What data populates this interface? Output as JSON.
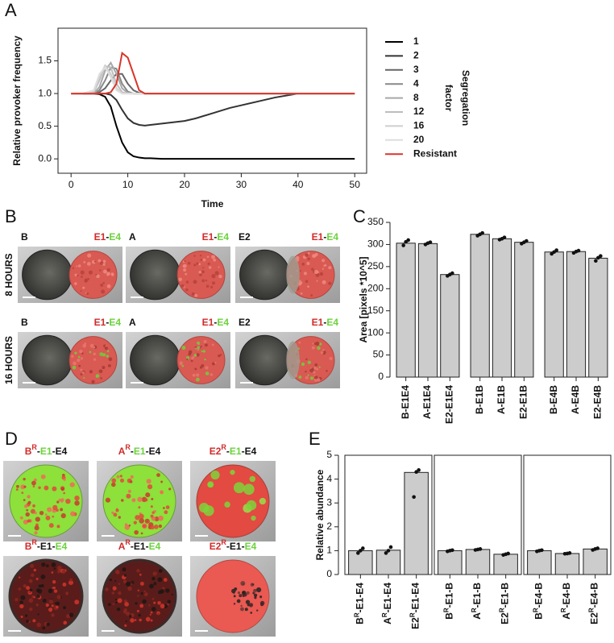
{
  "panel_labels": [
    "A",
    "B",
    "C",
    "D",
    "E"
  ],
  "chart_data": [
    {
      "type": "line",
      "xlabel": "Time",
      "ylabel": "Relative provoker frequency",
      "x": [
        0,
        2,
        4,
        5,
        6,
        7,
        8,
        9,
        10,
        11,
        12,
        13,
        14,
        16,
        18,
        20,
        22,
        25,
        28,
        30,
        33,
        36,
        40,
        45,
        50
      ],
      "xlim": [
        -2.3,
        52.1
      ],
      "xticks": [
        0,
        10,
        20,
        30,
        40,
        50
      ],
      "ylim": [
        -0.22,
        2.0
      ],
      "yticks": [
        {
          "value": 0,
          "label": "0.0"
        },
        0.5,
        {
          "value": 1,
          "label": "1.0"
        },
        1.5
      ],
      "legend": "right",
      "legend_title": [
        "Segregation",
        "factor"
      ],
      "series": [
        {
          "name": "1",
          "color": "#000000",
          "values": [
            1,
            1,
            1,
            0.99,
            0.95,
            0.8,
            0.5,
            0.25,
            0.1,
            0.04,
            0.02,
            0.01,
            0.01,
            0,
            0,
            0,
            0,
            0,
            0,
            0,
            0,
            0,
            0,
            0,
            0
          ]
        },
        {
          "name": "2",
          "color": "#333333",
          "values": [
            1,
            1,
            1,
            1,
            1,
            0.98,
            0.9,
            0.75,
            0.62,
            0.55,
            0.52,
            0.51,
            0.52,
            0.54,
            0.56,
            0.58,
            0.62,
            0.7,
            0.78,
            0.82,
            0.88,
            0.94,
            1,
            1,
            1
          ]
        },
        {
          "name": "3",
          "color": "#666666",
          "values": [
            1,
            1,
            1,
            1.02,
            1.08,
            1.2,
            1.3,
            1.3,
            1.15,
            1.05,
            1.01,
            1,
            1,
            1,
            1,
            1,
            1,
            1,
            1,
            1,
            1,
            1,
            1,
            1,
            1
          ]
        },
        {
          "name": "4",
          "color": "#888888",
          "values": [
            1,
            1,
            1,
            1.05,
            1.2,
            1.4,
            1.38,
            1.15,
            1.03,
            1,
            1,
            1,
            1,
            1,
            1,
            1,
            1,
            1,
            1,
            1,
            1,
            1,
            1,
            1,
            1
          ]
        },
        {
          "name": "8",
          "color": "#a8a8a8",
          "values": [
            1,
            1,
            1,
            1.1,
            1.35,
            1.47,
            1.3,
            1.08,
            1.01,
            1,
            1,
            1,
            1,
            1,
            1,
            1,
            1,
            1,
            1,
            1,
            1,
            1,
            1,
            1,
            1
          ]
        },
        {
          "name": "12",
          "color": "#bdbdbd",
          "values": [
            1,
            1,
            1.02,
            1.2,
            1.42,
            1.4,
            1.15,
            1.02,
            1,
            1,
            1,
            1,
            1,
            1,
            1,
            1,
            1,
            1,
            1,
            1,
            1,
            1,
            1,
            1,
            1
          ]
        },
        {
          "name": "16",
          "color": "#cecece",
          "values": [
            1,
            1,
            1.03,
            1.25,
            1.43,
            1.3,
            1.08,
            1,
            1,
            1,
            1,
            1,
            1,
            1,
            1,
            1,
            1,
            1,
            1,
            1,
            1,
            1,
            1,
            1,
            1
          ]
        },
        {
          "name": "20",
          "color": "#dedede",
          "values": [
            1,
            1,
            1.05,
            1.3,
            1.4,
            1.25,
            1.05,
            1,
            1,
            1,
            1,
            1,
            1,
            1,
            1,
            1,
            1,
            1,
            1,
            1,
            1,
            1,
            1,
            1,
            1
          ]
        },
        {
          "name": "Resistant",
          "color": "#d9352a",
          "values": [
            1,
            1,
            1,
            1,
            1,
            1.02,
            1.15,
            1.62,
            1.55,
            1.3,
            1.05,
            1,
            1,
            1,
            1,
            1,
            1,
            1,
            1,
            1,
            1,
            1,
            1,
            1,
            1
          ]
        }
      ]
    },
    {
      "type": "bar",
      "ylabel": "Area [pixels *10^5]",
      "color": "#cccccc",
      "categories": [
        "B-E1E4",
        "A-E1E4",
        "E2-E1E4",
        "B-E1B",
        "A-E1B",
        "E2-E1B",
        "B-E4B",
        "A-E4B",
        "E2-E4B"
      ],
      "category_colors": [
        "#111111",
        "#111111",
        "#d22a2a",
        "#111111",
        "#111111",
        "#d22a2a",
        "#111111",
        "#111111",
        "#d22a2a"
      ],
      "values": [
        303,
        302,
        232,
        323,
        313,
        305,
        283,
        284,
        269
      ],
      "replicates": [
        [
          298,
          306,
          310
        ],
        [
          300,
          303,
          305
        ],
        [
          229,
          232,
          235
        ],
        [
          320,
          323,
          326
        ],
        [
          311,
          313,
          316
        ],
        [
          302,
          305,
          308
        ],
        [
          279,
          283,
          287
        ],
        [
          281,
          284,
          286
        ],
        [
          263,
          270,
          274
        ]
      ],
      "ylim": [
        0,
        350
      ],
      "yticks": [
        0,
        50,
        100,
        150,
        200,
        250,
        300,
        350
      ]
    },
    {
      "type": "bar",
      "ylabel": "Relative abundance",
      "color": "#cccccc",
      "categories": [
        {
          "pre": "B",
          "sup": "R",
          "post": "-E1-E4"
        },
        {
          "pre": "A",
          "sup": "R",
          "post": "-E1-E4"
        },
        {
          "pre": "E2",
          "sup": "R",
          "post": "-E1-E4"
        },
        {
          "pre": "B",
          "sup": "R",
          "post": "-E1-B"
        },
        {
          "pre": "A",
          "sup": "R",
          "post": "-E1-B"
        },
        {
          "pre": "E2",
          "sup": "R",
          "post": "-E1-B"
        },
        {
          "pre": "B",
          "sup": "R",
          "post": "-E4-B"
        },
        {
          "pre": "A",
          "sup": "R",
          "post": "-E4-B"
        },
        {
          "pre": "E2",
          "sup": "R",
          "post": "-E4-B"
        }
      ],
      "category_colors": [
        "#111111",
        "#111111",
        "#d22a2a",
        "#111111",
        "#111111",
        "#d22a2a",
        "#111111",
        "#111111",
        "#d22a2a"
      ],
      "values": [
        1.0,
        1.02,
        4.28,
        1.0,
        1.05,
        0.85,
        1.0,
        0.88,
        1.07
      ],
      "replicates": [
        [
          0.9,
          1.0,
          1.1
        ],
        [
          0.9,
          1.0,
          1.15
        ],
        [
          3.25,
          4.3,
          4.38
        ],
        [
          0.97,
          1.0,
          1.02
        ],
        [
          1.03,
          1.05,
          1.07
        ],
        [
          0.82,
          0.85,
          0.88
        ],
        [
          0.97,
          1.0,
          1.02
        ],
        [
          0.87,
          0.88,
          0.9
        ],
        [
          1.03,
          1.07,
          1.1
        ]
      ],
      "ylim": [
        0,
        5
      ],
      "yticks": [
        0,
        1,
        2,
        3,
        4,
        5
      ]
    }
  ],
  "panel_b": {
    "rows": [
      {
        "label": "8 HOURS",
        "images": [
          {
            "strain": "B",
            "pair": [
              "E1",
              "-",
              "E4"
            ]
          },
          {
            "strain": "A",
            "pair": [
              "E1",
              "-",
              "E4"
            ]
          },
          {
            "strain": "E2",
            "pair": [
              "E1",
              "-",
              "E4"
            ]
          }
        ]
      },
      {
        "label": "16 HOURS",
        "images": [
          {
            "strain": "B",
            "pair": [
              "E1",
              "-",
              "E4"
            ]
          },
          {
            "strain": "A",
            "pair": [
              "E1",
              "-",
              "E4"
            ]
          },
          {
            "strain": "E2",
            "pair": [
              "E1",
              "-",
              "E4"
            ]
          }
        ]
      }
    ]
  },
  "panel_d": {
    "rows": [
      {
        "images": [
          {
            "pre": "B",
            "sup": "R",
            "parts": [
              "-",
              "E1",
              "-",
              "E4"
            ]
          },
          {
            "pre": "A",
            "sup": "R",
            "parts": [
              "-",
              "E1",
              "-",
              "E4"
            ]
          },
          {
            "pre": "E2",
            "sup": "R",
            "parts": [
              "-",
              "E1",
              "-",
              "E4"
            ]
          }
        ]
      },
      {
        "images": [
          {
            "pre": "B",
            "sup": "R",
            "parts": [
              "-",
              "E1",
              "-",
              "E4"
            ]
          },
          {
            "pre": "A",
            "sup": "R",
            "parts": [
              "-",
              "E1",
              "-",
              "E4"
            ]
          },
          {
            "pre": "E2",
            "sup": "R",
            "parts": [
              "-",
              "E1",
              "-",
              "E4"
            ]
          }
        ]
      }
    ]
  }
}
